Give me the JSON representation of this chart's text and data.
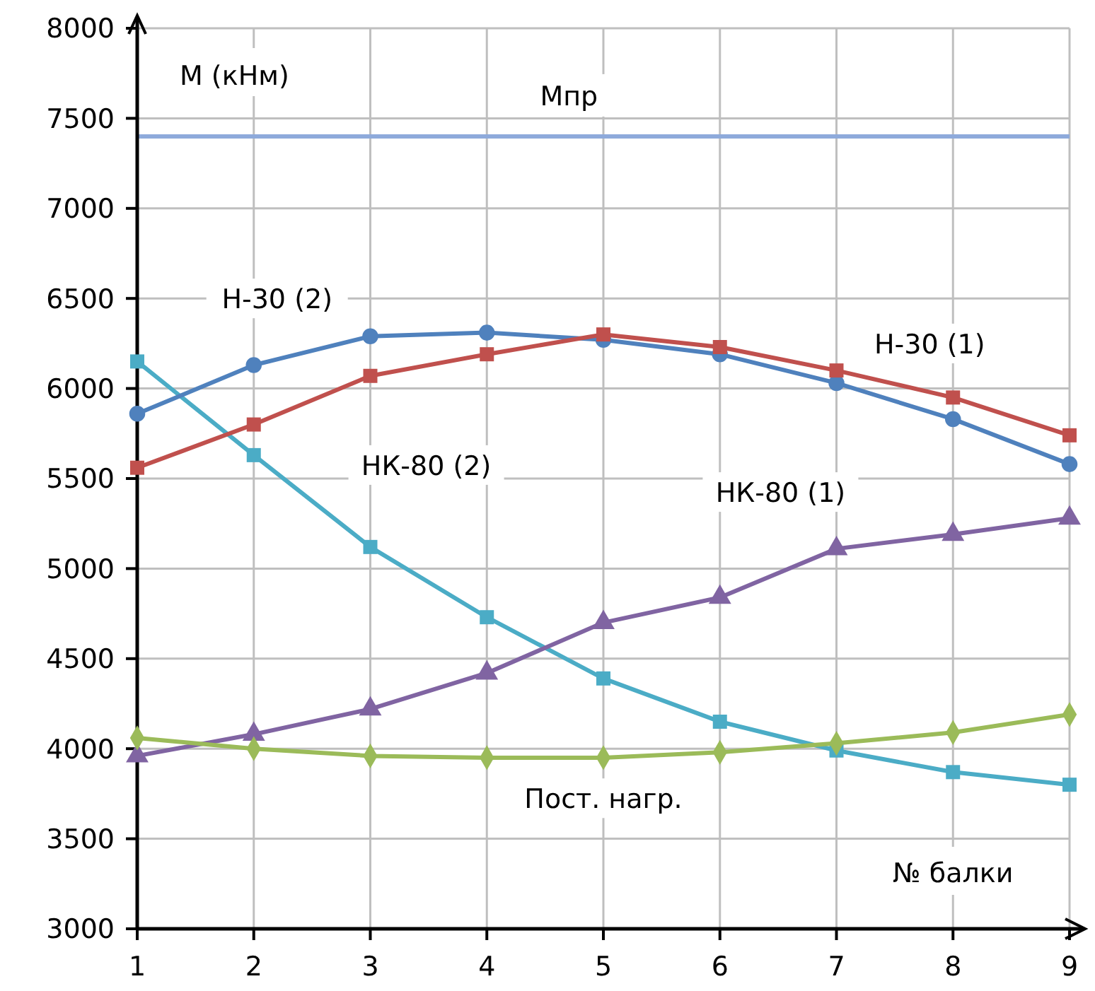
{
  "chart_data": {
    "type": "line",
    "xlabel": "№ балки",
    "ylabel": "М (кНм)",
    "x": [
      1,
      2,
      3,
      4,
      5,
      6,
      7,
      8,
      9
    ],
    "xlim": [
      1,
      9
    ],
    "xticks": [
      1,
      2,
      3,
      4,
      5,
      6,
      7,
      8,
      9
    ],
    "ylim": [
      3000,
      8000
    ],
    "yticks": [
      3000,
      3500,
      4000,
      4500,
      5000,
      5500,
      6000,
      6500,
      7000,
      7500,
      8000
    ],
    "grid": true,
    "series": [
      {
        "name": "Пост. нагр.",
        "color": "#9bbb59",
        "marker": "diamond",
        "values": [
          4060,
          4000,
          3960,
          3950,
          3950,
          3980,
          4030,
          4090,
          4190
        ]
      },
      {
        "name": "Н-30 (1)",
        "color": "#c0504d",
        "marker": "square",
        "values": [
          5560,
          5800,
          6070,
          6190,
          6300,
          6230,
          6100,
          5950,
          5740
        ]
      },
      {
        "name": "Н-30 (2)",
        "color": "#4f81bd",
        "marker": "circle",
        "values": [
          5860,
          6130,
          6290,
          6310,
          6270,
          6190,
          6030,
          5830,
          5580
        ]
      },
      {
        "name": "НК-80 (1)",
        "color": "#8064a2",
        "marker": "triangle",
        "values": [
          3960,
          4080,
          4220,
          4420,
          4700,
          4840,
          5110,
          5190,
          5280
        ]
      },
      {
        "name": "НК-80 (2)",
        "color": "#4bacc6",
        "marker": "square",
        "values": [
          6150,
          5630,
          5120,
          4730,
          4390,
          4150,
          3990,
          3870,
          3800
        ]
      }
    ],
    "ref_lines": [
      {
        "axis": "y",
        "value": 7400,
        "label": "Мпр",
        "color": "#8eaadb"
      }
    ]
  }
}
